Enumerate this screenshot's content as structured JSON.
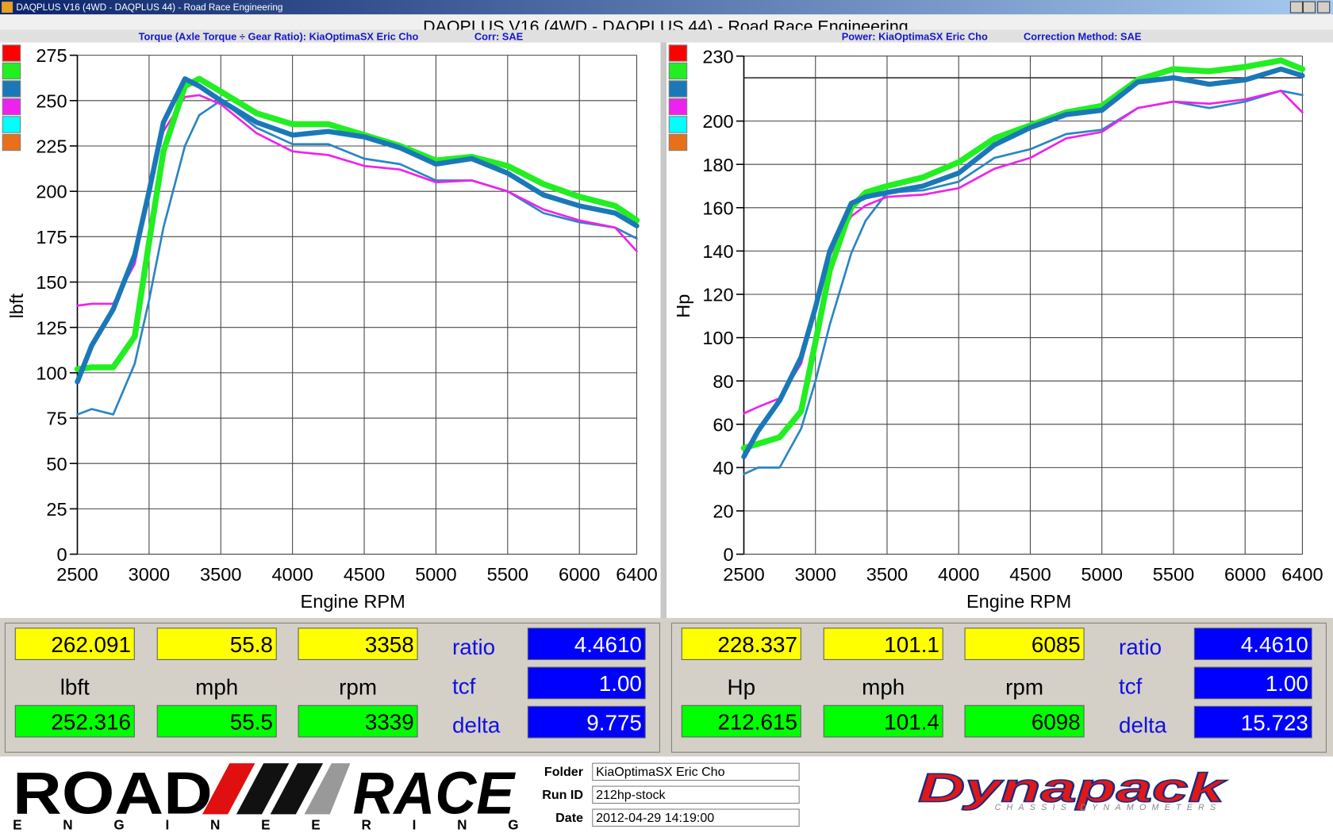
{
  "window": {
    "title": "DAQPLUS V16 (4WD - DAQPLUS 44) - Road Race Engineering"
  },
  "chart_data": [
    {
      "type": "line",
      "title": "Torque (Axle Torque ÷ Gear Ratio): KiaOptimaSX Eric Cho",
      "subtitle": "Corr: SAE",
      "x_label": "Engine RPM",
      "y_label": "lbft",
      "x": [
        2500,
        2600,
        2750,
        2900,
        3000,
        3100,
        3250,
        3350,
        3500,
        3750,
        4000,
        4250,
        4500,
        4750,
        5000,
        5250,
        5500,
        5750,
        6000,
        6250,
        6400
      ],
      "series": [
        {
          "color": "#2a86c2",
          "width": 2.5,
          "values": [
            77,
            80,
            77,
            105,
            140,
            180,
            225,
            242,
            250,
            235,
            226,
            226,
            218,
            215,
            206,
            206,
            200,
            188,
            183,
            180,
            174
          ]
        },
        {
          "color": "#ee22ee",
          "width": 2.5,
          "values": [
            137,
            138,
            138,
            160,
            200,
            233,
            252,
            253,
            248,
            232,
            222,
            220,
            214,
            212,
            205,
            206,
            200,
            190,
            184,
            180,
            167
          ]
        },
        {
          "color": "#22ee22",
          "width": 7,
          "values": [
            102,
            103,
            103,
            120,
            172,
            222,
            258,
            262,
            255,
            243,
            237,
            237,
            231,
            225,
            217,
            219,
            214,
            204,
            197,
            192,
            184
          ]
        },
        {
          "color": "#1a78b8",
          "width": 6,
          "values": [
            95,
            115,
            135,
            165,
            200,
            238,
            262,
            258,
            250,
            238,
            231,
            233,
            230,
            224,
            215,
            218,
            210,
            198,
            192,
            188,
            181
          ]
        }
      ],
      "xlim": [
        2500,
        6400
      ],
      "xticks": [
        2500,
        3000,
        3500,
        4000,
        4500,
        5000,
        5500,
        6000,
        6400
      ],
      "ylim": [
        0,
        275
      ],
      "yticks": [
        0,
        25,
        50,
        75,
        100,
        125,
        150,
        175,
        200,
        225,
        250,
        275
      ],
      "grid": true,
      "legend_colors": [
        "#ff0000",
        "#22ee22",
        "#1a78b8",
        "#ee22ee",
        "#00ffff",
        "#e8701a"
      ]
    },
    {
      "type": "line",
      "title": "Power: KiaOptimaSX Eric Cho",
      "subtitle": "Correction Method: SAE",
      "x_label": "Engine RPM",
      "y_label": "Hp",
      "x": [
        2500,
        2600,
        2750,
        2900,
        3000,
        3100,
        3250,
        3350,
        3500,
        3750,
        4000,
        4250,
        4500,
        4750,
        5000,
        5250,
        5500,
        5750,
        6000,
        6250,
        6400
      ],
      "series": [
        {
          "color": "#2a86c2",
          "width": 2.5,
          "values": [
            37,
            40,
            40,
            58,
            80,
            106,
            139,
            154,
            167,
            168,
            172,
            183,
            187,
            194,
            196,
            206,
            209,
            206,
            209,
            214,
            212
          ]
        },
        {
          "color": "#ee22ee",
          "width": 2.5,
          "values": [
            65,
            68,
            72,
            88,
            114,
            138,
            156,
            161,
            165,
            166,
            169,
            178,
            183,
            192,
            195,
            206,
            209,
            208,
            210,
            214,
            204
          ]
        },
        {
          "color": "#22ee22",
          "width": 7,
          "values": [
            49,
            51,
            54,
            66,
            98,
            131,
            160,
            167,
            170,
            174,
            181,
            192,
            198,
            204,
            207,
            219,
            224,
            223,
            225,
            228,
            224
          ]
        },
        {
          "color": "#1a78b8",
          "width": 6,
          "values": [
            45,
            57,
            71,
            91,
            114,
            140,
            162,
            165,
            167,
            170,
            176,
            189,
            197,
            203,
            205,
            218,
            220,
            217,
            219,
            224,
            221
          ]
        }
      ],
      "xlim": [
        2500,
        6400
      ],
      "xticks": [
        2500,
        3000,
        3500,
        4000,
        4500,
        5000,
        5500,
        6000,
        6400
      ],
      "ylim": [
        0,
        230
      ],
      "yticks": [
        0,
        20,
        40,
        60,
        80,
        100,
        120,
        140,
        160,
        180,
        200,
        230
      ],
      "grid": true,
      "hline": 220,
      "legend_colors": [
        "#ff0000",
        "#22ee22",
        "#1a78b8",
        "#ee22ee",
        "#00ffff",
        "#e8701a"
      ]
    }
  ],
  "readouts": [
    {
      "top": [
        "262.091",
        "55.8",
        "3358"
      ],
      "units": [
        "lbft",
        "mph",
        "rpm"
      ],
      "bottom": [
        "252.316",
        "55.5",
        "3339"
      ],
      "factor_labels": [
        "ratio",
        "tcf",
        "delta"
      ],
      "factors": [
        "4.4610",
        "1.00",
        "9.775"
      ]
    },
    {
      "top": [
        "228.337",
        "101.1",
        "6085"
      ],
      "units": [
        "Hp",
        "mph",
        "rpm"
      ],
      "bottom": [
        "212.615",
        "101.4",
        "6098"
      ],
      "factor_labels": [
        "ratio",
        "tcf",
        "delta"
      ],
      "factors": [
        "4.4610",
        "1.00",
        "15.723"
      ]
    }
  ],
  "footer": {
    "fields": [
      {
        "label": "Folder",
        "value": "KiaOptimaSX Eric Cho"
      },
      {
        "label": "Run ID",
        "value": "212hp-stock"
      },
      {
        "label": "Date",
        "value": "2012-04-29 14:19:00"
      }
    ],
    "logo_left": {
      "top": [
        "ROAD",
        "RACE"
      ],
      "bottom": "ENGINEERING"
    },
    "logo_right": {
      "name": "Dynapack",
      "tagline": "CHASSIS DYNAMOMETERS"
    }
  }
}
